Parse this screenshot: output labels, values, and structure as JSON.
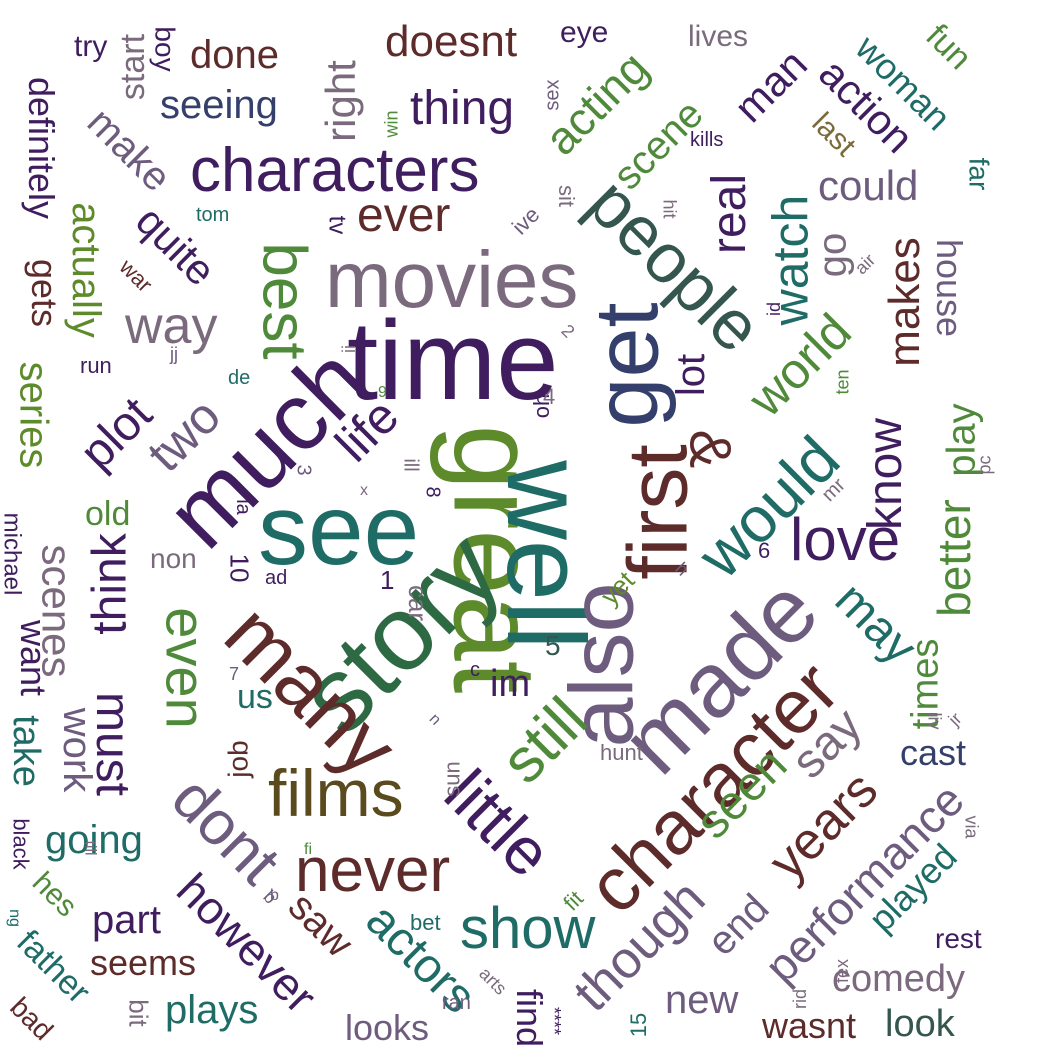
{
  "words": [
    {
      "text": "time",
      "color": "#3f1d5e",
      "rot": 0
    },
    {
      "text": "great",
      "color": "#5d8a2a",
      "rot": 90
    },
    {
      "text": "well",
      "color": "#1f6c67",
      "rot": 90
    },
    {
      "text": "see",
      "color": "#1f6c67",
      "rot": 0
    },
    {
      "text": "story",
      "color": "#2d6a44",
      "rot": -45
    },
    {
      "text": "movies",
      "color": "#7b6a7d",
      "rot": 0
    },
    {
      "text": "much",
      "color": "#3f1d5e",
      "rot": -45
    },
    {
      "text": "get",
      "color": "#34406b",
      "rot": -90
    },
    {
      "text": "also",
      "color": "#6d5c7e",
      "rot": -90
    },
    {
      "text": "made",
      "color": "#6d5c7e",
      "rot": -45
    },
    {
      "text": "many",
      "color": "#5e2b2b",
      "rot": 45
    },
    {
      "text": "first",
      "color": "#5e2b2b",
      "rot": -90
    },
    {
      "text": "character",
      "color": "#5e2b2b",
      "rot": -45
    },
    {
      "text": "characters",
      "color": "#3f1d5e",
      "rot": 0
    },
    {
      "text": "people",
      "color": "#34564e",
      "rot": 45
    },
    {
      "text": "films",
      "color": "#5a4a1e",
      "rot": 0
    },
    {
      "text": "little",
      "color": "#3f1d5e",
      "rot": 45
    },
    {
      "text": "would",
      "color": "#1f6c67",
      "rot": -45
    },
    {
      "text": "still",
      "color": "#4f8a3a",
      "rot": -45
    },
    {
      "text": "never",
      "color": "#5e2b2b",
      "rot": 0
    },
    {
      "text": "dont",
      "color": "#6d5c7e",
      "rot": 45
    },
    {
      "text": "love",
      "color": "#3f1d5e",
      "rot": 0
    },
    {
      "text": "best",
      "color": "#4f8a3a",
      "rot": 90
    },
    {
      "text": "even",
      "color": "#4f8a3a",
      "rot": 90
    },
    {
      "text": "show",
      "color": "#1f6c67",
      "rot": 0
    },
    {
      "text": "though",
      "color": "#6d5c7e",
      "rot": -45
    },
    {
      "text": "two",
      "color": "#6d5c7e",
      "rot": -45
    },
    {
      "text": "life",
      "color": "#3f1d5e",
      "rot": -45
    },
    {
      "text": "watch",
      "color": "#1f6c67",
      "rot": -90
    },
    {
      "text": "world",
      "color": "#4f8a3a",
      "rot": -45
    },
    {
      "text": "real",
      "color": "#3f1d5e",
      "rot": -90
    },
    {
      "text": "ever",
      "color": "#5e2b2b",
      "rot": 0
    },
    {
      "text": "thing",
      "color": "#3f1d5e",
      "rot": 0
    },
    {
      "text": "plot",
      "color": "#3f1d5e",
      "rot": -45
    },
    {
      "text": "think",
      "color": "#3f1d5e",
      "rot": -90
    },
    {
      "text": "must",
      "color": "#3f1d5e",
      "rot": 90
    },
    {
      "text": "way",
      "color": "#7b6a7d",
      "rot": 0
    },
    {
      "text": "seen",
      "color": "#4f8a3a",
      "rot": -45
    },
    {
      "text": "years",
      "color": "#5e2b2b",
      "rot": -45
    },
    {
      "text": "say",
      "color": "#7b6a7d",
      "rot": -45
    },
    {
      "text": "may",
      "color": "#1f6c67",
      "rot": 45
    },
    {
      "text": "know",
      "color": "#3f1d5e",
      "rot": -90
    },
    {
      "text": "actors",
      "color": "#1f6c67",
      "rot": 45
    },
    {
      "text": "however",
      "color": "#3f1d5e",
      "rot": 45
    },
    {
      "text": "performance",
      "color": "#6d5c7e",
      "rot": -45
    },
    {
      "text": "acting",
      "color": "#4f8a3a",
      "rot": -45
    },
    {
      "text": "doesnt",
      "color": "#5e2b2b",
      "rot": 0
    },
    {
      "text": "seeing",
      "color": "#34406b",
      "rot": 0
    },
    {
      "text": "done",
      "color": "#5e2b2b",
      "rot": 0
    },
    {
      "text": "right",
      "color": "#7b6a7d",
      "rot": -90
    },
    {
      "text": "quite",
      "color": "#3f1d5e",
      "rot": 45
    },
    {
      "text": "make",
      "color": "#6d5c7e",
      "rot": 45
    },
    {
      "text": "actually",
      "color": "#5d8a2a",
      "rot": 90
    },
    {
      "text": "definitely",
      "color": "#3f1d5e",
      "rot": 90
    },
    {
      "text": "start",
      "color": "#7b6a7d",
      "rot": -90
    },
    {
      "text": "boy",
      "color": "#3f1d5e",
      "rot": 90
    },
    {
      "text": "try",
      "color": "#3f1d5e",
      "rot": 0
    },
    {
      "text": "scene",
      "color": "#4f8a3a",
      "rot": -45
    },
    {
      "text": "man",
      "color": "#3f1d5e",
      "rot": -45
    },
    {
      "text": "action",
      "color": "#3f1d5e",
      "rot": 45
    },
    {
      "text": "woman",
      "color": "#1f6c67",
      "rot": 45
    },
    {
      "text": "fun",
      "color": "#4f8a3a",
      "rot": 45
    },
    {
      "text": "lives",
      "color": "#7b6a7d",
      "rot": 0
    },
    {
      "text": "eye",
      "color": "#3f1d5e",
      "rot": 0
    },
    {
      "text": "last",
      "color": "#7b6a3a",
      "rot": 45
    },
    {
      "text": "could",
      "color": "#6d5c7e",
      "rot": 0
    },
    {
      "text": "go",
      "color": "#7b6a7d",
      "rot": -90
    },
    {
      "text": "makes",
      "color": "#5e2b2b",
      "rot": -90
    },
    {
      "text": "house",
      "color": "#6d5c7e",
      "rot": 90
    },
    {
      "text": "play",
      "color": "#4f8a3a",
      "rot": -90
    },
    {
      "text": "better",
      "color": "#4f8a3a",
      "rot": -90
    },
    {
      "text": "lot",
      "color": "#3f1d5e",
      "rot": -90
    },
    {
      "text": "series",
      "color": "#5d8a2a",
      "rot": 90
    },
    {
      "text": "gets",
      "color": "#5e2b2b",
      "rot": 90
    },
    {
      "text": "scenes",
      "color": "#7b6a7d",
      "rot": 90
    },
    {
      "text": "old",
      "color": "#4f8a3a",
      "rot": 0
    },
    {
      "text": "work",
      "color": "#6d5c7e",
      "rot": 90
    },
    {
      "text": "want",
      "color": "#3f1d5e",
      "rot": 90
    },
    {
      "text": "take",
      "color": "#1f6c67",
      "rot": 90
    },
    {
      "text": "michael",
      "color": "#3f1d5e",
      "rot": 90
    },
    {
      "text": "black",
      "color": "#3f1d5e",
      "rot": 90
    },
    {
      "text": "going",
      "color": "#1f6c67",
      "rot": 0
    },
    {
      "text": "hes",
      "color": "#4f8a3a",
      "rot": 45
    },
    {
      "text": "father",
      "color": "#1f6c67",
      "rot": 45
    },
    {
      "text": "bad",
      "color": "#5e2b2b",
      "rot": 45
    },
    {
      "text": "part",
      "color": "#3f1d5e",
      "rot": 0
    },
    {
      "text": "seems",
      "color": "#5e2b2b",
      "rot": 0
    },
    {
      "text": "plays",
      "color": "#1f6c67",
      "rot": 0
    },
    {
      "text": "bit",
      "color": "#7b6a7d",
      "rot": 90
    },
    {
      "text": "looks",
      "color": "#6d5c7e",
      "rot": 0
    },
    {
      "text": "saw",
      "color": "#5e2b2b",
      "rot": 45
    },
    {
      "text": "find",
      "color": "#3f1d5e",
      "rot": 90
    },
    {
      "text": "new",
      "color": "#6d5c7e",
      "rot": 0
    },
    {
      "text": "wasnt",
      "color": "#5e2b2b",
      "rot": 0
    },
    {
      "text": "look",
      "color": "#34564e",
      "rot": 0
    },
    {
      "text": "comedy",
      "color": "#7b6a7d",
      "rot": 0
    },
    {
      "text": "end",
      "color": "#6d5c7e",
      "rot": -45
    },
    {
      "text": "played",
      "color": "#1f6c67",
      "rot": -45
    },
    {
      "text": "times",
      "color": "#4f8a3a",
      "rot": -90
    },
    {
      "text": "cast",
      "color": "#34406b",
      "rot": 0
    },
    {
      "text": "rest",
      "color": "#3f1d5e",
      "rot": 0
    },
    {
      "text": "im",
      "color": "#3f1d5e",
      "rot": 0
    },
    {
      "text": "us",
      "color": "#1f6c67",
      "rot": 0
    },
    {
      "text": "job",
      "color": "#5e2b2b",
      "rot": -90
    },
    {
      "text": "non",
      "color": "#7b6a7d",
      "rot": 0
    },
    {
      "text": "10",
      "color": "#3f1d5e",
      "rot": 90
    },
    {
      "text": "car",
      "color": "#7b6a7d",
      "rot": 90
    },
    {
      "text": "yet",
      "color": "#5d8a2a",
      "rot": -45
    },
    {
      "text": "5",
      "color": "#34564e",
      "rot": 0
    },
    {
      "text": "1",
      "color": "#3f1d5e",
      "rot": 0
    },
    {
      "text": "c",
      "color": "#3f1d5e",
      "rot": 0
    },
    {
      "text": "ad",
      "color": "#3f1d5e",
      "rot": 0
    },
    {
      "text": "hunt",
      "color": "#7b6a7d",
      "rot": 0
    },
    {
      "text": "sun",
      "color": "#7b6a7d",
      "rot": -90
    },
    {
      "text": "bet",
      "color": "#1f6c67",
      "rot": 0
    },
    {
      "text": "fit",
      "color": "#4f8a3a",
      "rot": -45
    },
    {
      "text": "ran",
      "color": "#6d5c7e",
      "rot": 0
    },
    {
      "text": "arts",
      "color": "#7b6a7d",
      "rot": 45
    },
    {
      "text": "15",
      "color": "#1f6c67",
      "rot": -90
    },
    {
      "text": "****",
      "color": "#3f1d5e",
      "rot": 90
    },
    {
      "text": "rid",
      "color": "#7b6a7d",
      "rot": -90
    },
    {
      "text": "fex",
      "color": "#7b6a7d",
      "rot": -90
    },
    {
      "text": "via",
      "color": "#7b6a7d",
      "rot": 90
    },
    {
      "text": "liv",
      "color": "#7b6a7d",
      "rot": 90
    },
    {
      "text": "jr",
      "color": "#7b6a7d",
      "rot": -45
    },
    {
      "text": "pc",
      "color": "#7b6a7d",
      "rot": -90
    },
    {
      "text": "mr",
      "color": "#7b6a7d",
      "rot": -45
    },
    {
      "text": "ten",
      "color": "#4f8a3a",
      "rot": -90
    },
    {
      "text": "air",
      "color": "#7b6a7d",
      "rot": -45
    },
    {
      "text": "ii",
      "color": "#7b6a7d",
      "rot": -90
    },
    {
      "text": "2",
      "color": "#7b6a7d",
      "rot": 45
    },
    {
      "text": "oh",
      "color": "#3f1d5e",
      "rot": -90
    },
    {
      "text": "4",
      "color": "#7b6a7d",
      "rot": 0
    },
    {
      "text": "8",
      "color": "#3f1d5e",
      "rot": 90
    },
    {
      "text": "ill",
      "color": "#7b6a7d",
      "rot": 90
    },
    {
      "text": "3",
      "color": "#6d5c7e",
      "rot": 90
    },
    {
      "text": "x",
      "color": "#7b6a7d",
      "rot": 0
    },
    {
      "text": "la",
      "color": "#3f1d5e",
      "rot": 90
    },
    {
      "text": "de",
      "color": "#1f6c67",
      "rot": 0
    },
    {
      "text": "jj",
      "color": "#6d5c7e",
      "rot": 0
    },
    {
      "text": "run",
      "color": "#3f1d5e",
      "rot": 0
    },
    {
      "text": "war",
      "color": "#5e2b2b",
      "rot": 45
    },
    {
      "text": "tom",
      "color": "#1f6c67",
      "rot": 0
    },
    {
      "text": "tv",
      "color": "#3f1d5e",
      "rot": 90
    },
    {
      "text": "ive",
      "color": "#6d5c7e",
      "rot": -45
    },
    {
      "text": "sit",
      "color": "#7b6a7d",
      "rot": 90
    },
    {
      "text": "sex",
      "color": "#6d5c7e",
      "rot": -90
    },
    {
      "text": "win",
      "color": "#4f8a3a",
      "rot": -90
    },
    {
      "text": "kills",
      "color": "#3f1d5e",
      "rot": 0
    },
    {
      "text": "hit",
      "color": "#7b6a7d",
      "rot": 90
    },
    {
      "text": "id",
      "color": "#3f1d5e",
      "rot": -90
    },
    {
      "text": "far",
      "color": "#1f6c67",
      "rot": 90
    },
    {
      "text": "9",
      "color": "#4f8a3a",
      "rot": 0
    },
    {
      "text": "6",
      "color": "#3f1d5e",
      "rot": 0
    },
    {
      "text": "b",
      "color": "#6d5c7e",
      "rot": 45
    },
    {
      "text": "h",
      "color": "#6d5c7e",
      "rot": 45
    },
    {
      "text": "fi",
      "color": "#4f8a3a",
      "rot": 0
    },
    {
      "text": "7",
      "color": "#6d5c7e",
      "rot": 0
    },
    {
      "text": "n",
      "color": "#6d5c7e",
      "rot": 45
    },
    {
      "text": "till",
      "color": "#7b6a7d",
      "rot": 90
    },
    {
      "text": "ng",
      "color": "#1f6c67",
      "rot": 90
    },
    {
      "text": "b",
      "color": "#6d5c7e",
      "rot": 0
    },
    {
      "text": "&",
      "color": "#5e2b2b",
      "rot": 90
    }
  ]
}
